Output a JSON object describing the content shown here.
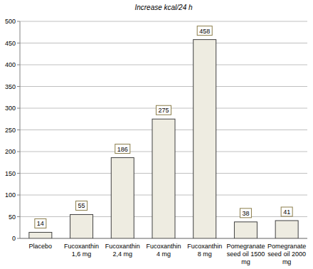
{
  "chart_data": {
    "type": "bar",
    "title": "Increase kcal/24 h",
    "categories": [
      "Placebo",
      "Fucoxanthin 1,6 mg",
      "Fucoxanthin 2,4 mg",
      "Fucoxanthin 4 mg",
      "Fucoxanthin 8 mg",
      "Pomegranate seed oil 1500 mg",
      "Pomegranate seed oil 2000 mg"
    ],
    "values": [
      14,
      55,
      186,
      275,
      458,
      38,
      41
    ],
    "color": "#eeece1",
    "ylim": [
      0,
      500
    ],
    "yticks": [
      0,
      50,
      100,
      150,
      200,
      250,
      300,
      350,
      400,
      450,
      500
    ],
    "grid": true,
    "data_labels": true
  }
}
